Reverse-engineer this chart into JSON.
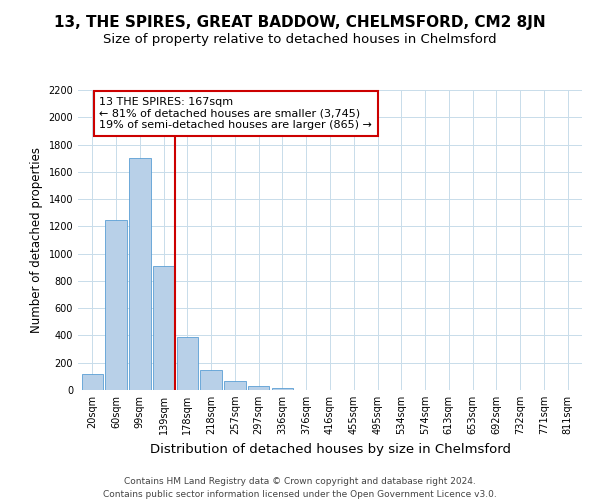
{
  "title": "13, THE SPIRES, GREAT BADDOW, CHELMSFORD, CM2 8JN",
  "subtitle": "Size of property relative to detached houses in Chelmsford",
  "xlabel": "Distribution of detached houses by size in Chelmsford",
  "ylabel": "Number of detached properties",
  "footnote1": "Contains HM Land Registry data © Crown copyright and database right 2024.",
  "footnote2": "Contains public sector information licensed under the Open Government Licence v3.0.",
  "bar_labels": [
    "20sqm",
    "60sqm",
    "99sqm",
    "139sqm",
    "178sqm",
    "218sqm",
    "257sqm",
    "297sqm",
    "336sqm",
    "376sqm",
    "416sqm",
    "455sqm",
    "495sqm",
    "534sqm",
    "574sqm",
    "613sqm",
    "653sqm",
    "692sqm",
    "732sqm",
    "771sqm",
    "811sqm"
  ],
  "bar_values": [
    120,
    1250,
    1700,
    910,
    390,
    150,
    68,
    30,
    18,
    0,
    0,
    0,
    0,
    0,
    0,
    0,
    0,
    0,
    0,
    0,
    0
  ],
  "bar_color": "#b8d0e8",
  "bar_edgecolor": "#5a9fd4",
  "vline_pos": 3.5,
  "vline_color": "#cc0000",
  "annotation_line1": "13 THE SPIRES: 167sqm",
  "annotation_line2": "← 81% of detached houses are smaller (3,745)",
  "annotation_line3": "19% of semi-detached houses are larger (865) →",
  "annotation_box_color": "#ffffff",
  "annotation_box_edgecolor": "#cc0000",
  "ylim": [
    0,
    2200
  ],
  "yticks": [
    0,
    200,
    400,
    600,
    800,
    1000,
    1200,
    1400,
    1600,
    1800,
    2000,
    2200
  ],
  "title_fontsize": 11,
  "subtitle_fontsize": 9.5,
  "xlabel_fontsize": 9.5,
  "ylabel_fontsize": 8.5,
  "tick_fontsize": 7,
  "annotation_fontsize": 8,
  "footnote_fontsize": 6.5,
  "background_color": "#ffffff",
  "grid_color": "#c8dcea"
}
